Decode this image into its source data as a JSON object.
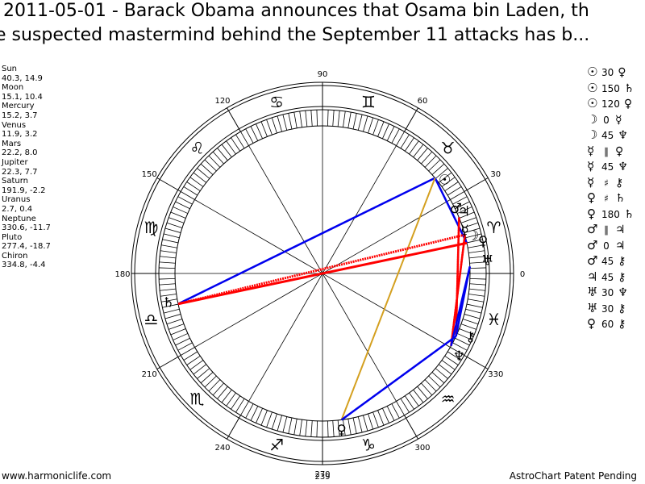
{
  "title": {
    "line1": "2011-05-01 - Barack Obama announces that Osama bin Laden, th",
    "line2": "e suspected mastermind behind the September 11 attacks has b..."
  },
  "positions": [
    {
      "name": "Sun",
      "value": "40.3, 14.9"
    },
    {
      "name": "Moon",
      "value": "15.1, 10.4"
    },
    {
      "name": "Mercury",
      "value": "15.2, 3.7"
    },
    {
      "name": "Venus",
      "value": "11.9, 3.2"
    },
    {
      "name": "Mars",
      "value": "22.2, 8.0"
    },
    {
      "name": "Jupiter",
      "value": "22.3, 7.7"
    },
    {
      "name": "Saturn",
      "value": "191.9, -2.2"
    },
    {
      "name": "Uranus",
      "value": "2.7, 0.4"
    },
    {
      "name": "Neptune",
      "value": "330.6, -11.7"
    },
    {
      "name": "Pluto",
      "value": "277.4, -18.7"
    },
    {
      "name": "Chiron",
      "value": "334.8, -4.4"
    }
  ],
  "aspects": [
    {
      "p1": "☉",
      "angle": "30",
      "p2": "♀",
      "p1_icon": "sun-icon",
      "p2_icon": "venus-icon"
    },
    {
      "p1": "☉",
      "angle": "150",
      "p2": "♄",
      "p1_icon": "sun-icon",
      "p2_icon": "saturn-icon"
    },
    {
      "p1": "☉",
      "angle": "120",
      "p2": "♀",
      "p1_icon": "sun-icon",
      "p2_icon": "pluto-icon"
    },
    {
      "p1": "☽",
      "angle": "0",
      "p2": "☿",
      "p1_icon": "moon-icon",
      "p2_icon": "mercury-icon"
    },
    {
      "p1": "☽",
      "angle": "45",
      "p2": "♆",
      "p1_icon": "moon-icon",
      "p2_icon": "neptune-icon"
    },
    {
      "p1": "☿",
      "angle": "∥",
      "p2": "♀",
      "p1_icon": "mercury-icon",
      "p2_icon": "venus-icon"
    },
    {
      "p1": "☿",
      "angle": "45",
      "p2": "♆",
      "p1_icon": "mercury-icon",
      "p2_icon": "neptune-icon"
    },
    {
      "p1": "☿",
      "angle": "♯",
      "p2": "⚷",
      "p1_icon": "mercury-icon",
      "p2_icon": "chiron-icon"
    },
    {
      "p1": "♀",
      "angle": "♯",
      "p2": "♄",
      "p1_icon": "venus-icon",
      "p2_icon": "saturn-icon"
    },
    {
      "p1": "♀",
      "angle": "180",
      "p2": "♄",
      "p1_icon": "venus-icon",
      "p2_icon": "saturn-icon"
    },
    {
      "p1": "♂",
      "angle": "∥",
      "p2": "♃",
      "p1_icon": "mars-icon",
      "p2_icon": "jupiter-icon"
    },
    {
      "p1": "♂",
      "angle": "0",
      "p2": "♃",
      "p1_icon": "mars-icon",
      "p2_icon": "jupiter-icon"
    },
    {
      "p1": "♂",
      "angle": "45",
      "p2": "⚷",
      "p1_icon": "mars-icon",
      "p2_icon": "chiron-icon"
    },
    {
      "p1": "♃",
      "angle": "45",
      "p2": "⚷",
      "p1_icon": "jupiter-icon",
      "p2_icon": "chiron-icon"
    },
    {
      "p1": "♅",
      "angle": "30",
      "p2": "♆",
      "p1_icon": "uranus-icon",
      "p2_icon": "neptune-icon"
    },
    {
      "p1": "♅",
      "angle": "30",
      "p2": "⚷",
      "p1_icon": "uranus-icon",
      "p2_icon": "chiron-icon"
    },
    {
      "p1": "♀",
      "angle": "60",
      "p2": "⚷",
      "p1_icon": "pluto-icon",
      "p2_icon": "chiron-icon"
    }
  ],
  "wheel": {
    "degree_labels": [
      {
        "deg": 0,
        "label": "0"
      },
      {
        "deg": 30,
        "label": "30"
      },
      {
        "deg": 60,
        "label": "60"
      },
      {
        "deg": 90,
        "label": "90"
      },
      {
        "deg": 120,
        "label": "120"
      },
      {
        "deg": 150,
        "label": "150"
      },
      {
        "deg": 180,
        "label": "180"
      },
      {
        "deg": 210,
        "label": "210"
      },
      {
        "deg": 240,
        "label": "240"
      },
      {
        "deg": 270,
        "label": "270"
      },
      {
        "deg": 300,
        "label": "300"
      },
      {
        "deg": 330,
        "label": "330"
      }
    ],
    "extra_label": "239",
    "signs": [
      {
        "glyph": "♈",
        "name": "aries-icon",
        "lon": 15
      },
      {
        "glyph": "♉",
        "name": "taurus-icon",
        "lon": 45
      },
      {
        "glyph": "♊",
        "name": "gemini-icon",
        "lon": 75
      },
      {
        "glyph": "♋",
        "name": "cancer-icon",
        "lon": 105
      },
      {
        "glyph": "♌",
        "name": "leo-icon",
        "lon": 135
      },
      {
        "glyph": "♍",
        "name": "virgo-icon",
        "lon": 165
      },
      {
        "glyph": "♎",
        "name": "libra-icon",
        "lon": 195
      },
      {
        "glyph": "♏",
        "name": "scorpio-icon",
        "lon": 225
      },
      {
        "glyph": "♐",
        "name": "sagittarius-icon",
        "lon": 255
      },
      {
        "glyph": "♑",
        "name": "capricorn-icon",
        "lon": 285
      },
      {
        "glyph": "♒",
        "name": "aquarius-icon",
        "lon": 315
      },
      {
        "glyph": "♓",
        "name": "pisces-icon",
        "lon": 345
      }
    ],
    "planets": [
      {
        "glyph": "☉",
        "name": "sun-icon",
        "lon": 40.3
      },
      {
        "glyph": "☽",
        "name": "moon-icon",
        "lon": 15.1
      },
      {
        "glyph": "☿",
        "name": "mercury-icon",
        "lon": 15.2
      },
      {
        "glyph": "♀",
        "name": "venus-icon",
        "lon": 11.9
      },
      {
        "glyph": "♂",
        "name": "mars-icon",
        "lon": 22.2
      },
      {
        "glyph": "♃",
        "name": "jupiter-icon",
        "lon": 22.3
      },
      {
        "glyph": "♄",
        "name": "saturn-icon",
        "lon": 191.9
      },
      {
        "glyph": "♅",
        "name": "uranus-icon",
        "lon": 2.7
      },
      {
        "glyph": "♆",
        "name": "neptune-icon",
        "lon": 330.6
      },
      {
        "glyph": "♀",
        "name": "pluto-icon",
        "lon": 277.4
      },
      {
        "glyph": "⚷",
        "name": "chiron-icon",
        "lon": 334.8
      }
    ],
    "colors": {
      "hard": "#ff0000",
      "soft": "#0000ee",
      "trine": "#d4a020",
      "line": "#000000"
    }
  },
  "footer": {
    "left": "www.harmoniclife.com",
    "right": "AstroChart Patent Pending"
  }
}
